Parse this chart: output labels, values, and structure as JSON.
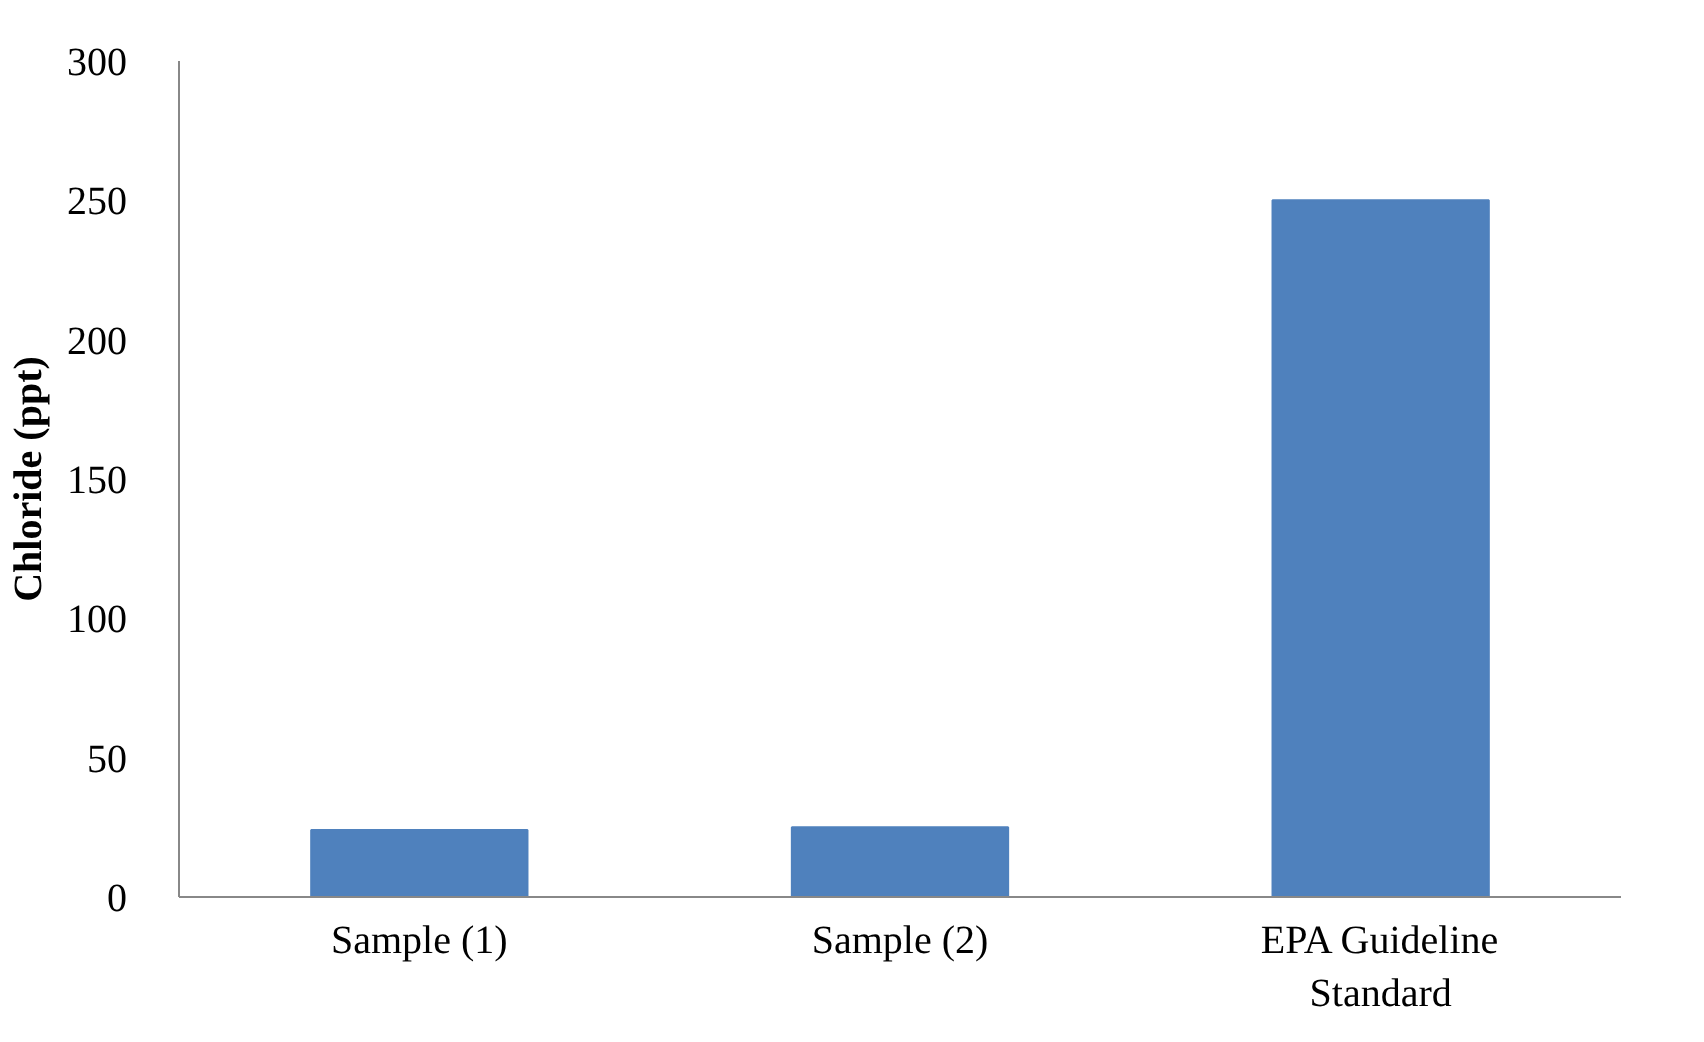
{
  "chart_data": {
    "type": "bar",
    "ylabel": "Chloride (ppt)",
    "categories": [
      "Sample (1)",
      "Sample (2)",
      "EPA Guideline Standard"
    ],
    "values": [
      24,
      25,
      250
    ],
    "color": "#4f81bd",
    "ylim": [
      0,
      300
    ],
    "yticks": [
      0,
      50,
      100,
      150,
      200,
      250,
      300
    ],
    "grid": false
  }
}
